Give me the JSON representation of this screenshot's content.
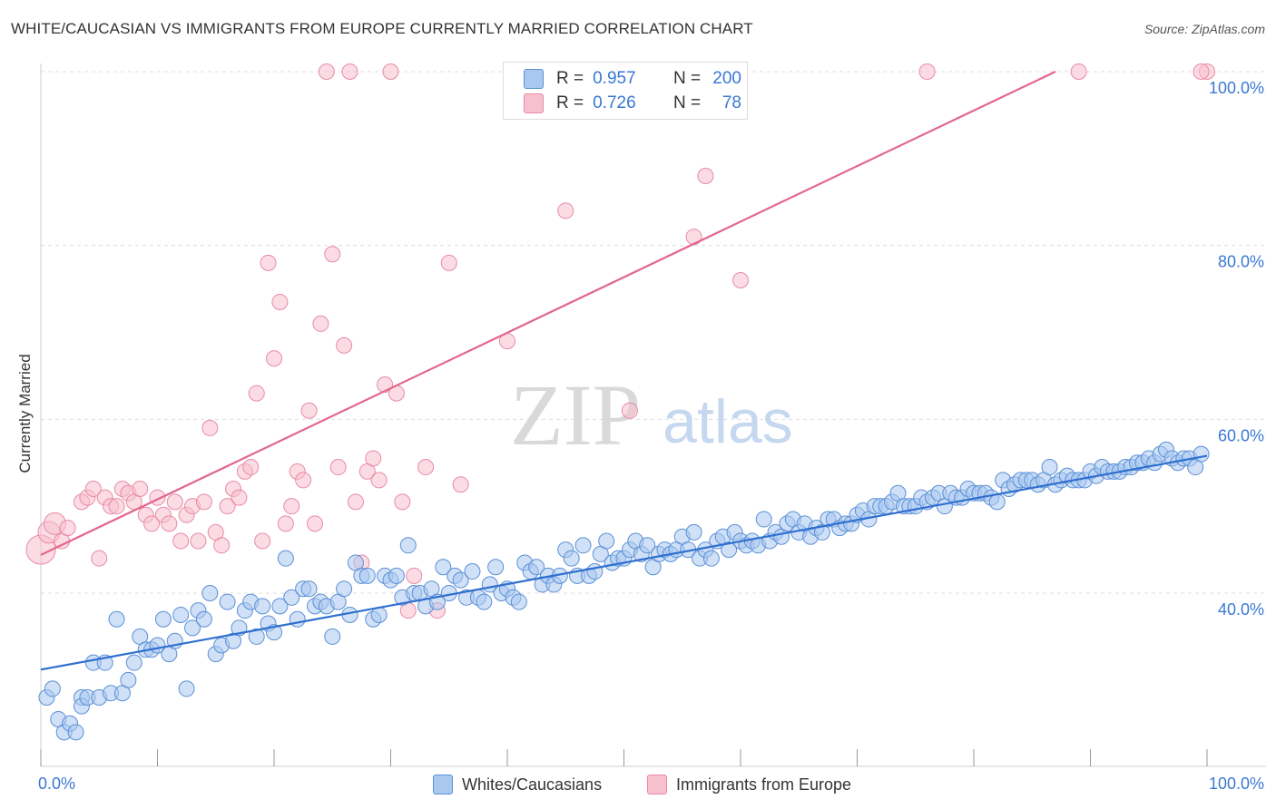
{
  "title": "WHITE/CAUCASIAN VS IMMIGRANTS FROM EUROPE CURRENTLY MARRIED CORRELATION CHART",
  "source": "Source: ZipAtlas.com",
  "watermark": {
    "zip": "ZIP",
    "atlas": "atlas"
  },
  "legend": {
    "r_label": "R =",
    "n_label": "N =",
    "blue": {
      "r": "0.957",
      "n": "200"
    },
    "pink": {
      "r": "0.726",
      "n": "78"
    }
  },
  "colors": {
    "blue_fill": "#a9c8f0",
    "blue_stroke": "#5b90d6",
    "blue_line": "#2f6fcf",
    "pink_fill": "#f7c0cf",
    "pink_stroke": "#e88aa6",
    "pink_line": "#e3668e",
    "axis_text": "#3a78d4",
    "grid": "#dddddd"
  },
  "chart_data": {
    "type": "scatter",
    "title": "WHITE/CAUCASIAN VS IMMIGRANTS FROM EUROPE CURRENTLY MARRIED CORRELATION CHART",
    "xlabel": "",
    "ylabel": "Currently Married",
    "xlim": [
      0,
      100
    ],
    "ylim": [
      20,
      102
    ],
    "x_tick_labels": [
      "0.0%",
      "100.0%"
    ],
    "y_ticks": [
      40,
      60,
      80,
      100
    ],
    "y_tick_labels": [
      "40.0%",
      "60.0%",
      "80.0%",
      "100.0%"
    ],
    "grid": true,
    "legend_position": "top-center",
    "series": [
      {
        "name": "Whites/Caucasians",
        "color": "#a9c8f0",
        "trend": {
          "x": [
            0,
            100
          ],
          "y": [
            31.2,
            55.8
          ]
        },
        "points": [
          [
            0.5,
            28
          ],
          [
            1,
            29
          ],
          [
            1.5,
            25.5
          ],
          [
            2,
            24
          ],
          [
            2.5,
            25
          ],
          [
            3,
            24
          ],
          [
            3.5,
            28
          ],
          [
            3.5,
            27
          ],
          [
            4,
            28
          ],
          [
            4.5,
            32
          ],
          [
            5,
            28
          ],
          [
            5.5,
            32
          ],
          [
            6,
            28.5
          ],
          [
            6.5,
            37
          ],
          [
            7,
            28.5
          ],
          [
            7.5,
            30
          ],
          [
            8,
            32
          ],
          [
            8.5,
            35
          ],
          [
            9,
            33.5
          ],
          [
            9.5,
            33.5
          ],
          [
            10,
            34
          ],
          [
            10.5,
            37
          ],
          [
            11,
            33
          ],
          [
            11.5,
            34.5
          ],
          [
            12,
            37.5
          ],
          [
            12.5,
            29
          ],
          [
            13,
            36
          ],
          [
            13.5,
            38
          ],
          [
            14,
            37
          ],
          [
            14.5,
            40
          ],
          [
            15,
            33
          ],
          [
            15.5,
            34
          ],
          [
            16,
            39
          ],
          [
            16.5,
            34.5
          ],
          [
            17,
            36
          ],
          [
            17.5,
            38
          ],
          [
            18,
            39
          ],
          [
            18.5,
            35
          ],
          [
            19,
            38.5
          ],
          [
            19.5,
            36.5
          ],
          [
            20,
            35.5
          ],
          [
            20.5,
            38.5
          ],
          [
            21,
            44
          ],
          [
            21.5,
            39.5
          ],
          [
            22,
            37
          ],
          [
            22.5,
            40.5
          ],
          [
            23,
            40.5
          ],
          [
            23.5,
            38.5
          ],
          [
            24,
            39
          ],
          [
            24.5,
            38.5
          ],
          [
            25,
            35
          ],
          [
            25.5,
            39
          ],
          [
            26,
            40.5
          ],
          [
            26.5,
            37.5
          ],
          [
            27,
            43.5
          ],
          [
            27.5,
            42
          ],
          [
            28,
            42
          ],
          [
            28.5,
            37
          ],
          [
            29,
            37.5
          ],
          [
            29.5,
            42
          ],
          [
            30,
            41.5
          ],
          [
            30.5,
            42
          ],
          [
            31,
            39.5
          ],
          [
            31.5,
            45.5
          ],
          [
            32,
            40
          ],
          [
            32.5,
            40
          ],
          [
            33,
            38.5
          ],
          [
            33.5,
            40.5
          ],
          [
            34,
            39
          ],
          [
            34.5,
            43
          ],
          [
            35,
            40
          ],
          [
            35.5,
            42
          ],
          [
            36,
            41.5
          ],
          [
            36.5,
            39.5
          ],
          [
            37,
            42.5
          ],
          [
            37.5,
            39.5
          ],
          [
            38,
            39
          ],
          [
            38.5,
            41
          ],
          [
            39,
            43
          ],
          [
            39.5,
            40
          ],
          [
            40,
            40.5
          ],
          [
            40.5,
            39.5
          ],
          [
            41,
            39
          ],
          [
            41.5,
            43.5
          ],
          [
            42,
            42.5
          ],
          [
            42.5,
            43
          ],
          [
            43,
            41
          ],
          [
            43.5,
            42
          ],
          [
            44,
            41
          ],
          [
            44.5,
            42
          ],
          [
            45,
            45
          ],
          [
            45.5,
            44
          ],
          [
            46,
            42
          ],
          [
            46.5,
            45.5
          ],
          [
            47,
            42
          ],
          [
            47.5,
            42.5
          ],
          [
            48,
            44.5
          ],
          [
            48.5,
            46
          ],
          [
            49,
            43.5
          ],
          [
            49.5,
            44
          ],
          [
            50,
            44
          ],
          [
            50.5,
            45
          ],
          [
            51,
            46
          ],
          [
            51.5,
            44.5
          ],
          [
            52,
            45.5
          ],
          [
            52.5,
            43
          ],
          [
            53,
            44.5
          ],
          [
            53.5,
            45
          ],
          [
            54,
            44.5
          ],
          [
            54.5,
            45
          ],
          [
            55,
            46.5
          ],
          [
            55.5,
            45
          ],
          [
            56,
            47
          ],
          [
            56.5,
            44
          ],
          [
            57,
            45
          ],
          [
            57.5,
            44
          ],
          [
            58,
            46
          ],
          [
            58.5,
            46.5
          ],
          [
            59,
            45
          ],
          [
            59.5,
            47
          ],
          [
            60,
            46
          ],
          [
            60.5,
            45.5
          ],
          [
            61,
            46
          ],
          [
            61.5,
            45.5
          ],
          [
            62,
            48.5
          ],
          [
            62.5,
            46
          ],
          [
            63,
            47
          ],
          [
            63.5,
            46.5
          ],
          [
            64,
            48
          ],
          [
            64.5,
            48.5
          ],
          [
            65,
            47
          ],
          [
            65.5,
            48
          ],
          [
            66,
            46.5
          ],
          [
            66.5,
            47.5
          ],
          [
            67,
            47
          ],
          [
            67.5,
            48.5
          ],
          [
            68,
            48.5
          ],
          [
            68.5,
            47.5
          ],
          [
            69,
            48
          ],
          [
            69.5,
            48
          ],
          [
            70,
            49
          ],
          [
            70.5,
            49.5
          ],
          [
            71,
            48.5
          ],
          [
            71.5,
            50
          ],
          [
            72,
            50
          ],
          [
            72.5,
            50
          ],
          [
            73,
            50.5
          ],
          [
            73.5,
            51.5
          ],
          [
            74,
            50
          ],
          [
            74.5,
            50
          ],
          [
            75,
            50
          ],
          [
            75.5,
            51
          ],
          [
            76,
            50.5
          ],
          [
            76.5,
            51
          ],
          [
            77,
            51.5
          ],
          [
            77.5,
            50
          ],
          [
            78,
            51.5
          ],
          [
            78.5,
            51
          ],
          [
            79,
            51
          ],
          [
            79.5,
            52
          ],
          [
            80,
            51.5
          ],
          [
            80.5,
            51.5
          ],
          [
            81,
            51.5
          ],
          [
            81.5,
            51
          ],
          [
            82,
            50.5
          ],
          [
            82.5,
            53
          ],
          [
            83,
            52
          ],
          [
            83.5,
            52.5
          ],
          [
            84,
            53
          ],
          [
            84.5,
            53
          ],
          [
            85,
            53
          ],
          [
            85.5,
            52.5
          ],
          [
            86,
            53
          ],
          [
            86.5,
            54.5
          ],
          [
            87,
            52.5
          ],
          [
            87.5,
            53
          ],
          [
            88,
            53.5
          ],
          [
            88.5,
            53
          ],
          [
            89,
            53
          ],
          [
            89.5,
            53
          ],
          [
            90,
            54
          ],
          [
            90.5,
            53.5
          ],
          [
            91,
            54.5
          ],
          [
            91.5,
            54
          ],
          [
            92,
            54
          ],
          [
            92.5,
            54
          ],
          [
            93,
            54.5
          ],
          [
            93.5,
            54.5
          ],
          [
            94,
            55
          ],
          [
            94.5,
            55
          ],
          [
            95,
            55.5
          ],
          [
            95.5,
            55
          ],
          [
            96,
            56
          ],
          [
            96.5,
            56.5
          ],
          [
            97,
            55.5
          ],
          [
            97.5,
            55
          ],
          [
            98,
            55.5
          ],
          [
            98.5,
            55.5
          ],
          [
            99,
            54.5
          ],
          [
            99.5,
            56
          ]
        ]
      },
      {
        "name": "Immigrants from Europe",
        "color": "#f7c0cf",
        "trend": {
          "x": [
            0,
            87
          ],
          "y": [
            44.4,
            100
          ]
        },
        "points": [
          [
            0,
            45
          ],
          [
            0.7,
            47
          ],
          [
            1.2,
            48
          ],
          [
            1.8,
            46
          ],
          [
            2.3,
            47.5
          ],
          [
            3.5,
            50.5
          ],
          [
            4,
            51
          ],
          [
            4.5,
            52
          ],
          [
            5,
            44
          ],
          [
            5.5,
            51
          ],
          [
            6,
            50
          ],
          [
            6.5,
            50
          ],
          [
            7,
            52
          ],
          [
            7.5,
            51.5
          ],
          [
            8,
            50.5
          ],
          [
            8.5,
            52
          ],
          [
            9,
            49
          ],
          [
            9.5,
            48
          ],
          [
            10,
            51
          ],
          [
            10.5,
            49
          ],
          [
            11,
            48
          ],
          [
            11.5,
            50.5
          ],
          [
            12,
            46
          ],
          [
            12.5,
            49
          ],
          [
            13,
            50
          ],
          [
            13.5,
            46
          ],
          [
            14,
            50.5
          ],
          [
            14.5,
            59
          ],
          [
            15,
            47
          ],
          [
            15.5,
            45.5
          ],
          [
            16,
            50
          ],
          [
            16.5,
            52
          ],
          [
            17,
            51
          ],
          [
            17.5,
            54
          ],
          [
            18,
            54.5
          ],
          [
            18.5,
            63
          ],
          [
            19,
            46
          ],
          [
            19.5,
            78
          ],
          [
            20,
            67
          ],
          [
            20.5,
            73.5
          ],
          [
            21,
            48
          ],
          [
            21.5,
            50
          ],
          [
            22,
            54
          ],
          [
            22.5,
            53
          ],
          [
            23,
            61
          ],
          [
            23.5,
            48
          ],
          [
            24,
            71
          ],
          [
            24.5,
            100
          ],
          [
            25,
            79
          ],
          [
            25.5,
            54.5
          ],
          [
            26,
            68.5
          ],
          [
            26.5,
            100
          ],
          [
            27,
            50.5
          ],
          [
            27.5,
            43.5
          ],
          [
            28,
            54
          ],
          [
            28.5,
            55.5
          ],
          [
            29,
            53
          ],
          [
            29.5,
            64
          ],
          [
            30,
            100
          ],
          [
            30.5,
            63
          ],
          [
            31,
            50.5
          ],
          [
            31.5,
            38
          ],
          [
            32,
            42
          ],
          [
            33,
            54.5
          ],
          [
            34,
            38
          ],
          [
            35,
            78
          ],
          [
            36,
            52.5
          ],
          [
            40,
            69
          ],
          [
            45,
            84
          ],
          [
            50,
            100
          ],
          [
            50.5,
            61
          ],
          [
            56,
            81
          ],
          [
            57,
            88
          ],
          [
            60,
            76
          ],
          [
            76,
            100
          ],
          [
            89,
            100
          ],
          [
            100,
            100
          ],
          [
            99.5,
            100
          ]
        ]
      }
    ]
  }
}
